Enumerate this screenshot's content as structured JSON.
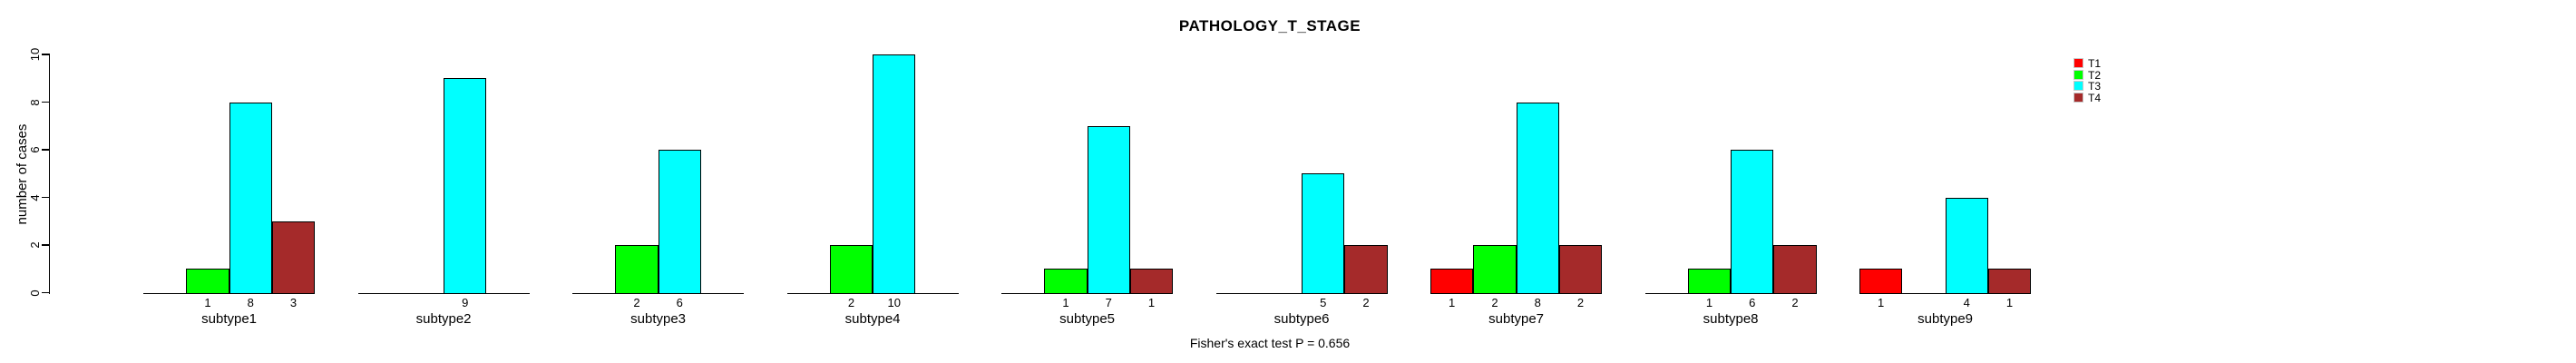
{
  "chart_data": {
    "type": "bar",
    "title": "PATHOLOGY_T_STAGE",
    "ylabel": "number of cases",
    "xlabel": "",
    "ylim": [
      0,
      10
    ],
    "y_ticks": [
      0,
      2,
      4,
      6,
      8,
      10
    ],
    "grid": false,
    "legend_position": "right",
    "bar_value_labels_shown": true,
    "categories": [
      "subtype1",
      "subtype2",
      "subtype3",
      "subtype4",
      "subtype5",
      "subtype6",
      "subtype7",
      "subtype8",
      "subtype9"
    ],
    "series": [
      {
        "name": "T1",
        "color": "#FF0000",
        "values": [
          0,
          0,
          0,
          0,
          0,
          0,
          1,
          0,
          1
        ]
      },
      {
        "name": "T2",
        "color": "#00FF00",
        "values": [
          1,
          0,
          2,
          2,
          1,
          0,
          2,
          1,
          0
        ]
      },
      {
        "name": "T3",
        "color": "#00FFFF",
        "values": [
          8,
          9,
          6,
          10,
          7,
          5,
          8,
          6,
          4
        ]
      },
      {
        "name": "T4",
        "color": "#A52A2A",
        "values": [
          3,
          0,
          0,
          0,
          1,
          2,
          2,
          2,
          1
        ]
      }
    ],
    "annotation": "Fisher's exact test P = 0.656"
  }
}
